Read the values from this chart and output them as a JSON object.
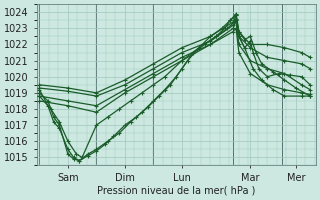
{
  "bg_color": "#cce8e0",
  "grid_color": "#a0c8bc",
  "line_color": "#1a5c2a",
  "ylabel_text": "Pression niveau de la mer( hPa )",
  "ylim": [
    1014.5,
    1024.5
  ],
  "yticks": [
    1015,
    1016,
    1017,
    1018,
    1019,
    1020,
    1021,
    1022,
    1023,
    1024
  ],
  "day_labels": [
    "Sam",
    "Dim",
    "Lun",
    "Mar",
    "Mer"
  ],
  "day_positions": [
    0.5,
    1.5,
    2.5,
    3.7,
    4.5
  ],
  "day_vline_positions": [
    0.0,
    1.0,
    2.0,
    3.4,
    4.25
  ],
  "xlim": [
    -0.05,
    4.85
  ],
  "series": [
    [
      0.0,
      1019.0,
      0.15,
      1018.5,
      0.25,
      1017.5,
      0.35,
      1017.0,
      0.5,
      1015.2,
      0.6,
      1014.9,
      0.7,
      1014.8,
      0.85,
      1015.1,
      1.0,
      1015.4,
      1.15,
      1015.8,
      1.3,
      1016.3,
      1.5,
      1017.0,
      1.7,
      1017.5,
      1.9,
      1018.1,
      2.1,
      1018.8,
      2.3,
      1019.5,
      2.5,
      1020.5,
      2.7,
      1021.5,
      2.9,
      1022.0,
      3.1,
      1022.5,
      3.25,
      1023.0,
      3.35,
      1023.5,
      3.45,
      1023.8,
      3.5,
      1022.5,
      3.6,
      1021.8,
      3.7,
      1022.2,
      3.75,
      1021.5,
      3.85,
      1020.5,
      4.0,
      1020.0,
      4.2,
      1020.2,
      4.4,
      1020.1,
      4.6,
      1020.0,
      4.75,
      1019.5
    ],
    [
      0.0,
      1019.2,
      0.15,
      1018.2,
      0.25,
      1017.2,
      0.35,
      1016.8,
      0.5,
      1015.5,
      0.6,
      1015.0,
      0.7,
      1014.8,
      0.85,
      1015.2,
      1.0,
      1015.5,
      1.2,
      1016.0,
      1.4,
      1016.5,
      1.6,
      1017.2,
      1.8,
      1017.8,
      2.0,
      1018.5,
      2.2,
      1019.2,
      2.4,
      1020.0,
      2.6,
      1021.0,
      2.8,
      1021.8,
      3.0,
      1022.5,
      3.2,
      1023.0,
      3.35,
      1023.5,
      3.45,
      1023.9,
      3.5,
      1022.8,
      3.6,
      1022.3,
      3.7,
      1022.5,
      3.8,
      1021.5,
      3.9,
      1020.8,
      4.1,
      1020.3,
      4.3,
      1019.8,
      4.5,
      1019.3,
      4.75,
      1018.8
    ],
    [
      0.0,
      1018.8,
      0.2,
      1018.0,
      0.35,
      1017.2,
      0.5,
      1016.0,
      0.65,
      1015.2,
      0.75,
      1015.0,
      1.0,
      1017.0,
      1.2,
      1017.5,
      1.4,
      1018.0,
      1.6,
      1018.5,
      1.8,
      1019.0,
      2.0,
      1019.5,
      2.2,
      1020.0,
      2.5,
      1021.0,
      2.8,
      1021.8,
      3.1,
      1022.5,
      3.3,
      1023.0,
      3.45,
      1023.5,
      3.5,
      1022.5,
      3.6,
      1021.8,
      3.75,
      1020.5,
      3.9,
      1019.8,
      4.1,
      1019.2,
      4.3,
      1018.8,
      4.6,
      1018.8,
      4.75,
      1018.8
    ],
    [
      0.0,
      1018.5,
      0.5,
      1018.2,
      1.0,
      1017.8,
      1.5,
      1019.0,
      2.0,
      1020.0,
      2.5,
      1021.0,
      3.0,
      1022.0,
      3.4,
      1023.0,
      3.45,
      1023.5,
      3.5,
      1022.0,
      3.7,
      1021.0,
      4.0,
      1020.5,
      4.3,
      1020.2,
      4.6,
      1019.5,
      4.75,
      1019.2
    ],
    [
      0.0,
      1018.8,
      0.5,
      1018.5,
      1.0,
      1018.2,
      1.5,
      1019.2,
      2.0,
      1020.2,
      2.5,
      1021.2,
      3.0,
      1022.0,
      3.4,
      1022.8,
      3.45,
      1023.0,
      3.5,
      1021.5,
      3.7,
      1020.2,
      4.0,
      1019.5,
      4.3,
      1019.2,
      4.6,
      1019.0,
      4.75,
      1018.9
    ],
    [
      0.0,
      1019.3,
      0.5,
      1019.1,
      1.0,
      1018.8,
      1.5,
      1019.5,
      2.0,
      1020.5,
      2.5,
      1021.5,
      3.0,
      1022.2,
      3.4,
      1023.2,
      3.45,
      1023.6,
      3.5,
      1022.5,
      3.7,
      1021.8,
      4.0,
      1021.2,
      4.3,
      1021.0,
      4.6,
      1020.8,
      4.75,
      1020.5
    ],
    [
      0.0,
      1019.5,
      0.5,
      1019.3,
      1.0,
      1019.0,
      1.5,
      1019.8,
      2.0,
      1020.8,
      2.5,
      1021.8,
      3.0,
      1022.5,
      3.4,
      1023.4,
      3.45,
      1023.8,
      3.5,
      1022.8,
      3.7,
      1022.0,
      4.0,
      1022.0,
      4.3,
      1021.8,
      4.6,
      1021.5,
      4.75,
      1021.2
    ]
  ]
}
